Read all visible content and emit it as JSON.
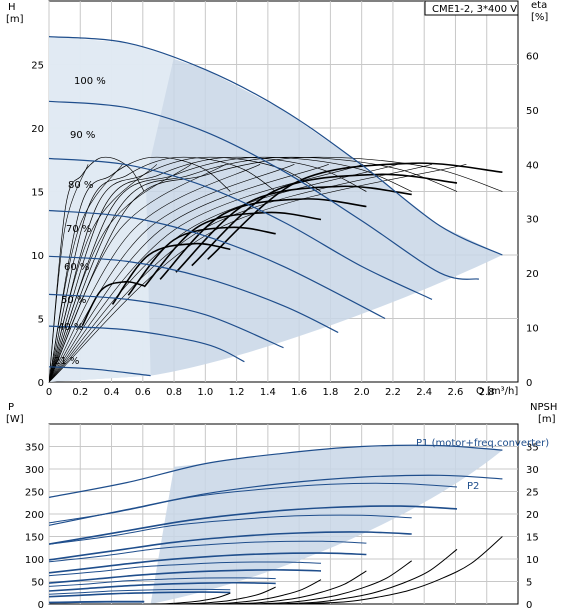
{
  "chart_data": [
    {
      "type": "line",
      "title": "CME1-2, 3*400 V",
      "ylabel": "H",
      "yunit": "[m]",
      "y2label": "eta",
      "y2unit": "[%]",
      "xlabel": "Q",
      "xunit": "[m³/h]",
      "xlim": [
        0,
        3.0
      ],
      "ylim": [
        0,
        30
      ],
      "y2lim": [
        0,
        70
      ],
      "xticks": [
        "0",
        "0.2",
        "0.4",
        "0.6",
        "0.8",
        "1.0",
        "1.2",
        "1.4",
        "1.6",
        "1.8",
        "2.0",
        "2.2",
        "2.4",
        "2.6",
        "2.8"
      ],
      "yticks": [
        "0",
        "5",
        "10",
        "15",
        "20",
        "25"
      ],
      "y2ticks": [
        "0",
        "10",
        "20",
        "30",
        "40",
        "50",
        "60"
      ],
      "grid": true,
      "speed_labels": [
        "100 %",
        "90 %",
        "80 %",
        "70 %",
        "60 %",
        "50 %",
        "40 %",
        "21 %"
      ],
      "series": [
        {
          "name": "100 %",
          "x": [
            0,
            0.5,
            1.0,
            1.5,
            2.0,
            2.5,
            2.9
          ],
          "y": [
            27.2,
            26.7,
            24.6,
            21.4,
            17.1,
            12.3,
            10.0
          ]
        },
        {
          "name": "90 %",
          "x": [
            0,
            0.5,
            1.0,
            1.5,
            2.0,
            2.5,
            2.75
          ],
          "y": [
            22.1,
            21.6,
            19.7,
            16.6,
            12.7,
            8.6,
            8.1
          ]
        },
        {
          "name": "80 %",
          "x": [
            0,
            0.5,
            1.0,
            1.5,
            2.0,
            2.45
          ],
          "y": [
            17.6,
            17.1,
            15.4,
            12.6,
            9.1,
            6.5
          ]
        },
        {
          "name": "70 %",
          "x": [
            0,
            0.5,
            1.0,
            1.5,
            2.15
          ],
          "y": [
            13.5,
            13.0,
            11.5,
            9.1,
            5.0
          ]
        },
        {
          "name": "60 %",
          "x": [
            0,
            0.5,
            1.0,
            1.5,
            1.85
          ],
          "y": [
            9.9,
            9.5,
            8.2,
            6.0,
            3.9
          ]
        },
        {
          "name": "50 %",
          "x": [
            0,
            0.5,
            1.0,
            1.5
          ],
          "y": [
            6.9,
            6.5,
            5.3,
            2.7
          ]
        },
        {
          "name": "40 %",
          "x": [
            0,
            0.5,
            1.0,
            1.25
          ],
          "y": [
            4.4,
            4.1,
            3.0,
            1.6
          ]
        },
        {
          "name": "21 %",
          "x": [
            0,
            0.3,
            0.65
          ],
          "y": [
            1.2,
            1.0,
            0.5
          ]
        }
      ],
      "eta_series": [
        {
          "x": [
            0,
            0.5,
            1.0,
            1.5,
            2.0,
            2.5,
            2.9
          ],
          "y": [
            0,
            32,
            38,
            41,
            41,
            39,
            35
          ]
        },
        {
          "x": [
            0,
            0.3,
            0.5,
            0.65
          ],
          "y": [
            0,
            30,
            38,
            32
          ]
        }
      ]
    },
    {
      "type": "line",
      "ylabel": "P",
      "yunit": "[W]",
      "y2label": "NPSH",
      "y2unit": "[m]",
      "xlim": [
        0,
        3.0
      ],
      "ylim": [
        0,
        400
      ],
      "y2lim": [
        0,
        40
      ],
      "yticks": [
        "0",
        "50",
        "100",
        "150",
        "200",
        "250",
        "300",
        "350"
      ],
      "y2ticks": [
        "0",
        "5",
        "10",
        "15",
        "20",
        "25",
        "30",
        "35"
      ],
      "grid": true,
      "power_labels": [
        "P1 (motor+freq.converter)",
        "P2"
      ],
      "series": [
        {
          "name": "P1 (motor+freq.converter)",
          "x": [
            0,
            0.5,
            1.0,
            1.5,
            2.0,
            2.5,
            2.9
          ],
          "y": [
            237,
            270,
            312,
            335,
            350,
            352,
            342
          ]
        },
        {
          "name": "P2",
          "x": [
            0,
            0.5,
            1.0,
            1.5,
            2.0,
            2.5,
            2.9
          ],
          "y": [
            175,
            210,
            245,
            268,
            282,
            286,
            278
          ]
        }
      ],
      "npsh": [
        {
          "x": [
            1.6,
            1.9,
            2.1,
            2.3,
            2.5,
            2.7,
            2.9
          ],
          "y": [
            0,
            0.5,
            1.5,
            3,
            5.5,
            9,
            15
          ]
        }
      ]
    }
  ]
}
